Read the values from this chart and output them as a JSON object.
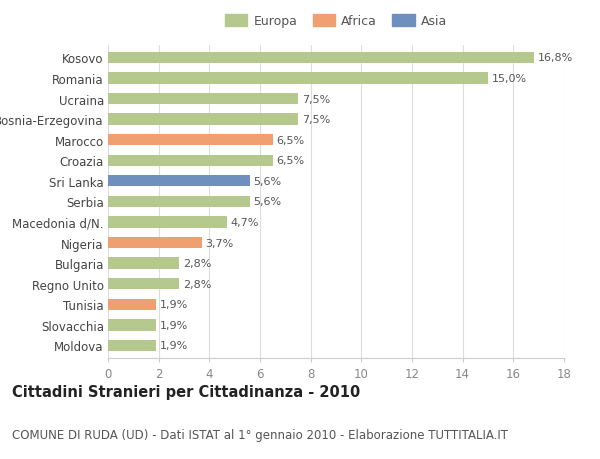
{
  "categories": [
    "Kosovo",
    "Romania",
    "Ucraina",
    "Bosnia-Erzegovina",
    "Marocco",
    "Croazia",
    "Sri Lanka",
    "Serbia",
    "Macedonia d/N.",
    "Nigeria",
    "Bulgaria",
    "Regno Unito",
    "Tunisia",
    "Slovacchia",
    "Moldova"
  ],
  "values": [
    16.8,
    15.0,
    7.5,
    7.5,
    6.5,
    6.5,
    5.6,
    5.6,
    4.7,
    3.7,
    2.8,
    2.8,
    1.9,
    1.9,
    1.9
  ],
  "labels": [
    "16,8%",
    "15,0%",
    "7,5%",
    "7,5%",
    "6,5%",
    "6,5%",
    "5,6%",
    "5,6%",
    "4,7%",
    "3,7%",
    "2,8%",
    "2,8%",
    "1,9%",
    "1,9%",
    "1,9%"
  ],
  "continent": [
    "Europa",
    "Europa",
    "Europa",
    "Europa",
    "Africa",
    "Europa",
    "Asia",
    "Europa",
    "Europa",
    "Africa",
    "Europa",
    "Europa",
    "Africa",
    "Europa",
    "Europa"
  ],
  "colors": {
    "Europa": "#b5c98e",
    "Africa": "#f0a070",
    "Asia": "#6f8fbe"
  },
  "legend_order": [
    "Europa",
    "Africa",
    "Asia"
  ],
  "xlim": [
    0,
    18
  ],
  "xticks": [
    0,
    2,
    4,
    6,
    8,
    10,
    12,
    14,
    16,
    18
  ],
  "background_color": "#ffffff",
  "grid_color": "#dddddd",
  "title": "Cittadini Stranieri per Cittadinanza - 2010",
  "subtitle": "COMUNE DI RUDA (UD) - Dati ISTAT al 1° gennaio 2010 - Elaborazione TUTTITALIA.IT",
  "title_fontsize": 10.5,
  "subtitle_fontsize": 8.5,
  "bar_height": 0.55,
  "label_fontsize": 8,
  "ytick_fontsize": 8.5,
  "xtick_fontsize": 8.5
}
